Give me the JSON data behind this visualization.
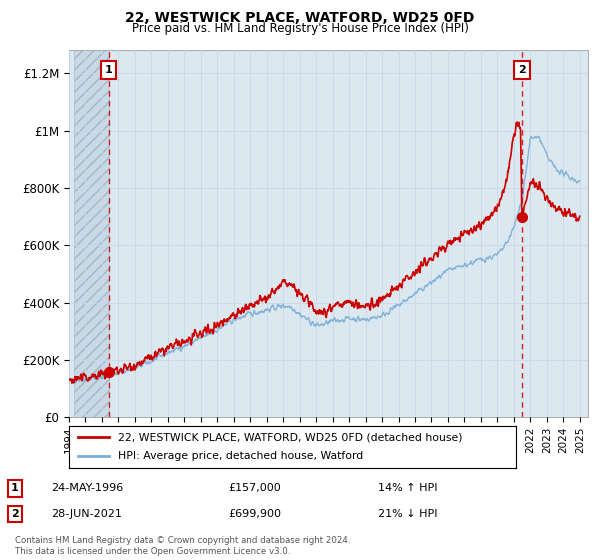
{
  "title": "22, WESTWICK PLACE, WATFORD, WD25 0FD",
  "subtitle": "Price paid vs. HM Land Registry's House Price Index (HPI)",
  "ylabel_ticks": [
    "£0",
    "£200K",
    "£400K",
    "£600K",
    "£800K",
    "£1M",
    "£1.2M"
  ],
  "ytick_values": [
    0,
    200000,
    400000,
    600000,
    800000,
    1000000,
    1200000
  ],
  "ylim": [
    0,
    1280000
  ],
  "xlim_start": 1994.3,
  "xlim_end": 2025.5,
  "sale1_x": 1996.4,
  "sale1_y": 157000,
  "sale2_x": 2021.49,
  "sale2_y": 699900,
  "sale1_label": "1",
  "sale2_label": "2",
  "line1_label": "22, WESTWICK PLACE, WATFORD, WD25 0FD (detached house)",
  "line2_label": "HPI: Average price, detached house, Watford",
  "info1_num": "1",
  "info1_date": "24-MAY-1996",
  "info1_price": "£157,000",
  "info1_hpi": "14% ↑ HPI",
  "info2_num": "2",
  "info2_date": "28-JUN-2021",
  "info2_price": "£699,900",
  "info2_hpi": "21% ↓ HPI",
  "footer": "Contains HM Land Registry data © Crown copyright and database right 2024.\nThis data is licensed under the Open Government Licence v3.0.",
  "line1_color": "#cc0000",
  "line2_color": "#7aaed6",
  "grid_color": "#c8d8e8",
  "bg_color": "#dce8f0"
}
